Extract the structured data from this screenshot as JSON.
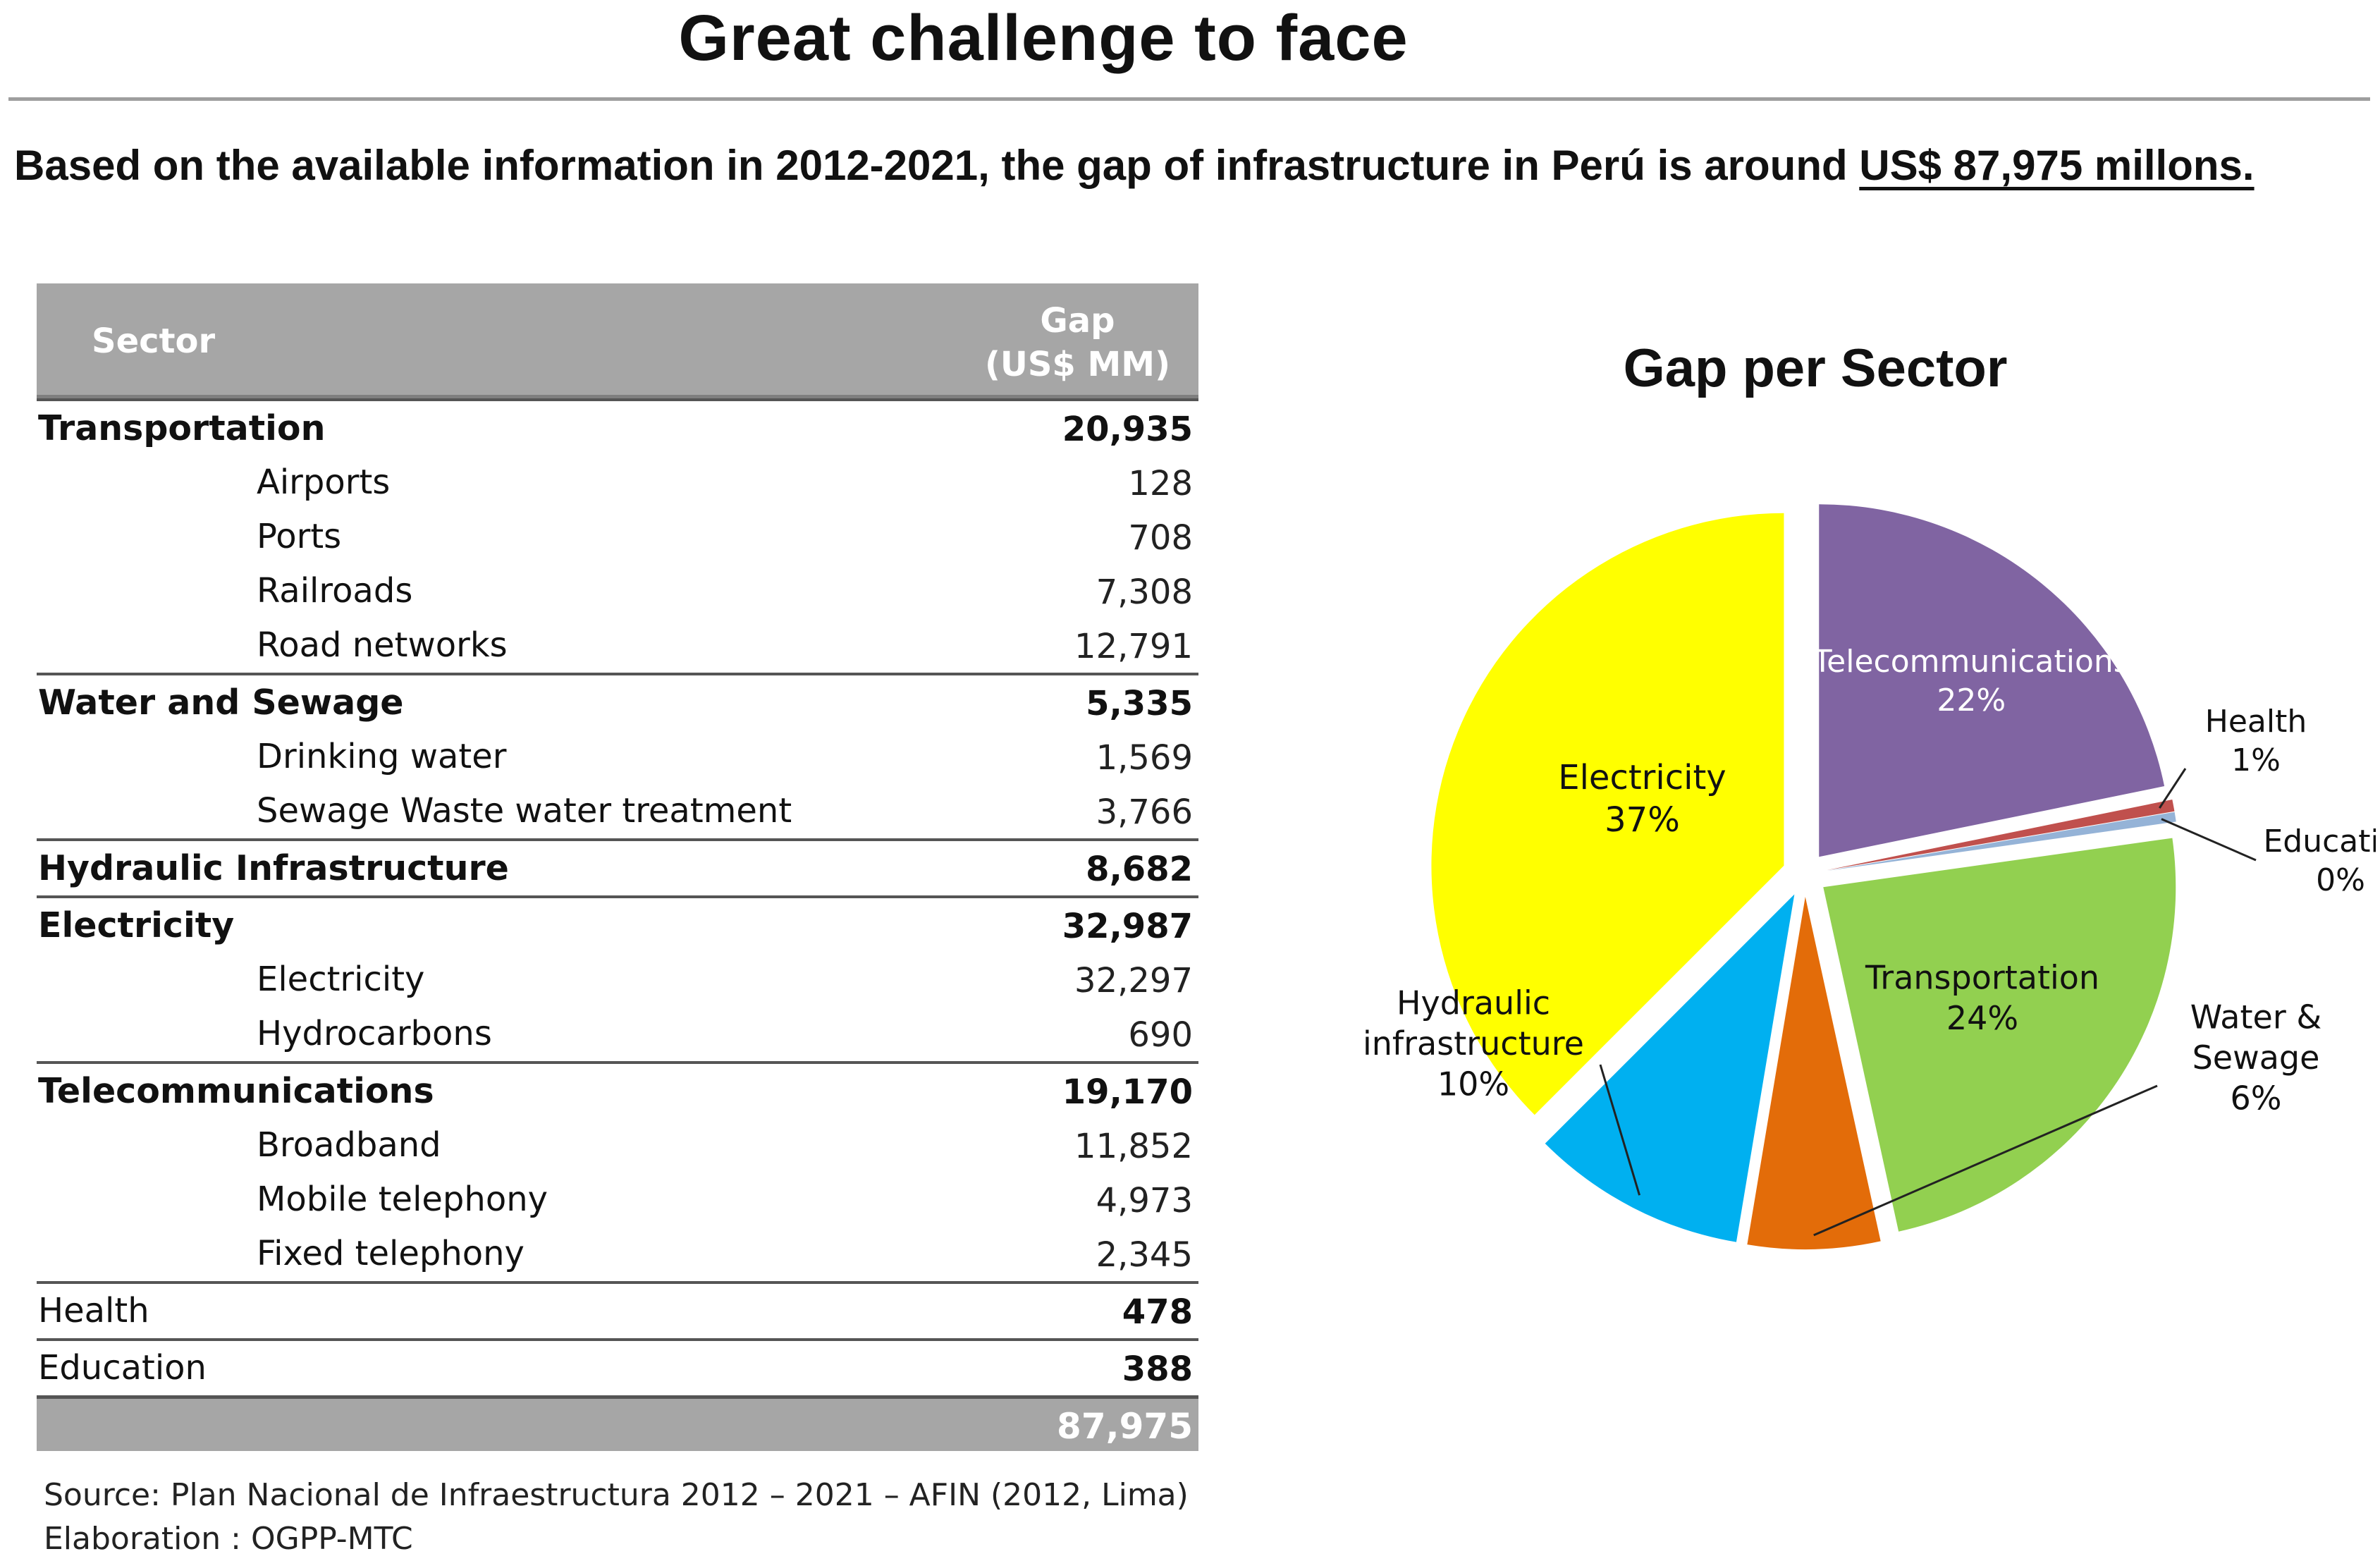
{
  "header": {
    "title": "Great challenge to face",
    "subtitle_prefix": "Based on the available information in 2012-2021, the gap of infrastructure in Perú is around ",
    "subtitle_highlight": "US$ 87,975 millons."
  },
  "table": {
    "col_sector": "Sector",
    "col_gap_line1": "Gap",
    "col_gap_line2": "(US$ MM)",
    "rows": [
      {
        "name": "Transportation",
        "value": "20,935",
        "kind": "major"
      },
      {
        "name": "Airports",
        "value": "128",
        "kind": "sub"
      },
      {
        "name": "Ports",
        "value": "708",
        "kind": "sub"
      },
      {
        "name": "Railroads",
        "value": "7,308",
        "kind": "sub"
      },
      {
        "name": "Road networks",
        "value": "12,791",
        "kind": "sub"
      },
      {
        "name": "Water and Sewage",
        "value": "5,335",
        "kind": "major"
      },
      {
        "name": "Drinking water",
        "value": "1,569",
        "kind": "sub"
      },
      {
        "name": "Sewage Waste water treatment",
        "value": "3,766",
        "kind": "sub"
      },
      {
        "name": "Hydraulic Infrastructure",
        "value": "8,682",
        "kind": "major"
      },
      {
        "name": "Electricity",
        "value": "32,987",
        "kind": "major"
      },
      {
        "name": "Electricity",
        "value": "32,297",
        "kind": "sub"
      },
      {
        "name": "Hydrocarbons",
        "value": "690",
        "kind": "sub"
      },
      {
        "name": "Telecommunications",
        "value": "19,170",
        "kind": "major"
      },
      {
        "name": "Broadband",
        "value": "11,852",
        "kind": "sub"
      },
      {
        "name": "Mobile telephony",
        "value": "4,973",
        "kind": "sub"
      },
      {
        "name": "Fixed telephony",
        "value": "2,345",
        "kind": "sub"
      },
      {
        "name": "Health",
        "value": "478",
        "kind": "plain"
      },
      {
        "name": "Education",
        "value": "388",
        "kind": "plain"
      }
    ],
    "total": "87,975"
  },
  "source": {
    "line1": "Source: Plan Nacional de Infraestructura 2012 – 2021 – AFIN (2012, Lima)",
    "line2": "Elaboration : OGPP-MTC"
  },
  "chart_data": {
    "type": "pie",
    "title": "Gap per Sector",
    "slices": [
      {
        "name": "Telecommunications",
        "value": 19170,
        "label": "22%",
        "color": "#8064a2"
      },
      {
        "name": "Health",
        "value": 478,
        "label": "1%",
        "color": "#c0504d"
      },
      {
        "name": "Education",
        "value": 388,
        "label": "0%",
        "color": "#95b3d7"
      },
      {
        "name": "Transportation",
        "value": 20935,
        "label": "24%",
        "color": "#92d050"
      },
      {
        "name": "Water & Sewage",
        "value": 5335,
        "label": "6%",
        "color": "#e36c09"
      },
      {
        "name": "Hydraulic infrastructure",
        "value": 8682,
        "label": "10%",
        "color": "#00b0f0"
      },
      {
        "name": "Electricity",
        "value": 32987,
        "label": "37%",
        "color": "#ffff00"
      }
    ]
  }
}
